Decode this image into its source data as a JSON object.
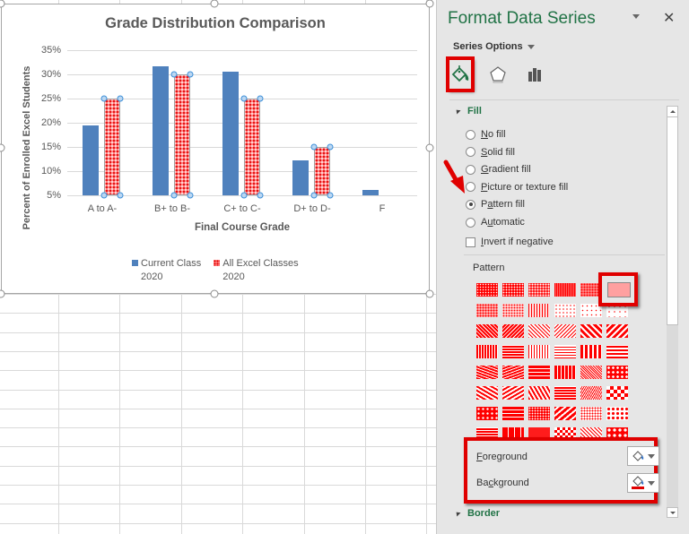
{
  "chart_data": {
    "type": "bar",
    "title": "Grade Distribution Comparison",
    "xlabel": "Final Course Grade",
    "ylabel": "Percent of Enrolled Excel Students",
    "categories": [
      "A to A-",
      "B+ to B-",
      "C+ to C-",
      "D+ to D-",
      "F"
    ],
    "series": [
      {
        "name": "Current  Class 2020",
        "color": "#4f81bd",
        "values": [
          19.5,
          31.7,
          30.5,
          12.2,
          6.1
        ]
      },
      {
        "name": "All Excel Classes 2020",
        "color": "#ff8080",
        "fill": "pattern",
        "values": [
          25,
          30,
          25,
          15,
          0
        ]
      }
    ],
    "ylim": [
      5,
      35
    ],
    "yticks": [
      "35%",
      "30%",
      "25%",
      "20%",
      "15%",
      "10%",
      "5%"
    ],
    "grid": true,
    "legend_position": "bottom"
  },
  "chart": {
    "title": "Grade Distribution Comparison",
    "ylabel": "Percent of Enrolled Excel Students",
    "xlabel": "Final Course Grade",
    "yticks": [
      "35%",
      "30%",
      "25%",
      "20%",
      "15%",
      "10%",
      "5%"
    ],
    "categories": [
      "A to A-",
      "B+ to B-",
      "C+ to C-",
      "D+ to D-",
      "F"
    ],
    "legend": [
      {
        "line1": "Current  Class",
        "line2": "2020"
      },
      {
        "line1": "All Excel Classes",
        "line2": "2020"
      }
    ]
  },
  "panel": {
    "title": "Format Data Series",
    "close": "✕",
    "series_options": "Series Options",
    "tabs": [
      {
        "icon": "fill-line-icon",
        "active": true
      },
      {
        "icon": "effects-icon",
        "active": false
      },
      {
        "icon": "series-options-icon",
        "active": false
      }
    ],
    "fill_section": "Fill",
    "fill_options": [
      {
        "pre": "",
        "u": "N",
        "post": "o fill",
        "checked": false
      },
      {
        "pre": "",
        "u": "S",
        "post": "olid fill",
        "checked": false
      },
      {
        "pre": "",
        "u": "G",
        "post": "radient fill",
        "checked": false
      },
      {
        "pre": "",
        "u": "P",
        "post": "icture or texture fill",
        "checked": false
      },
      {
        "pre": "P",
        "u": "a",
        "post": "ttern fill",
        "checked": true
      },
      {
        "pre": "A",
        "u": "u",
        "post": "tomatic",
        "checked": false
      }
    ],
    "invert": {
      "pre": "",
      "u": "I",
      "post": "nvert if negative",
      "checked": false
    },
    "pattern_label": "Pattern",
    "foreground": {
      "u": "F",
      "post": "oreground"
    },
    "background": {
      "pre": "Ba",
      "u": "c",
      "post": "kground"
    },
    "border_section": "Border",
    "colors": {
      "accent_green": "#217346",
      "highlight_red": "#e00000",
      "pattern_red": "#ff0000"
    }
  }
}
